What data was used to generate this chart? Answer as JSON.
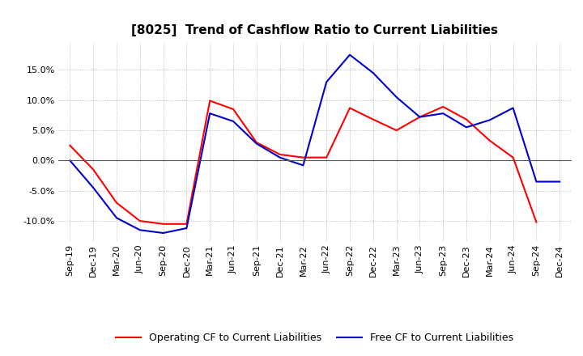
{
  "title": "[8025]  Trend of Cashflow Ratio to Current Liabilities",
  "x_labels": [
    "Sep-19",
    "Dec-19",
    "Mar-20",
    "Jun-20",
    "Sep-20",
    "Dec-20",
    "Mar-21",
    "Jun-21",
    "Sep-21",
    "Dec-21",
    "Mar-22",
    "Jun-22",
    "Sep-22",
    "Dec-22",
    "Mar-23",
    "Jun-23",
    "Sep-23",
    "Dec-23",
    "Mar-24",
    "Jun-24",
    "Sep-24",
    "Dec-24"
  ],
  "operating_cf": [
    2.5,
    -1.5,
    -7.0,
    -10.0,
    -10.5,
    -10.5,
    9.9,
    8.5,
    3.0,
    1.0,
    0.5,
    0.5,
    8.7,
    6.8,
    5.0,
    7.2,
    8.9,
    6.8,
    3.3,
    0.5,
    -10.2,
    null
  ],
  "free_cf": [
    0.0,
    -4.5,
    -9.5,
    -11.5,
    -12.0,
    -11.2,
    7.8,
    6.5,
    2.8,
    0.5,
    -0.8,
    13.0,
    17.5,
    14.5,
    10.5,
    7.2,
    7.8,
    5.5,
    6.7,
    8.7,
    -3.5,
    -3.5
  ],
  "ylim": [
    -13.5,
    19.5
  ],
  "yticks": [
    -10.0,
    -5.0,
    0.0,
    5.0,
    10.0,
    15.0
  ],
  "operating_color": "#ff0000",
  "free_color": "#0000cc",
  "background_color": "#ffffff",
  "grid_color": "#aaaaaa",
  "legend_op": "Operating CF to Current Liabilities",
  "legend_free": "Free CF to Current Liabilities",
  "title_fontsize": 11,
  "tick_fontsize": 8,
  "legend_fontsize": 9
}
